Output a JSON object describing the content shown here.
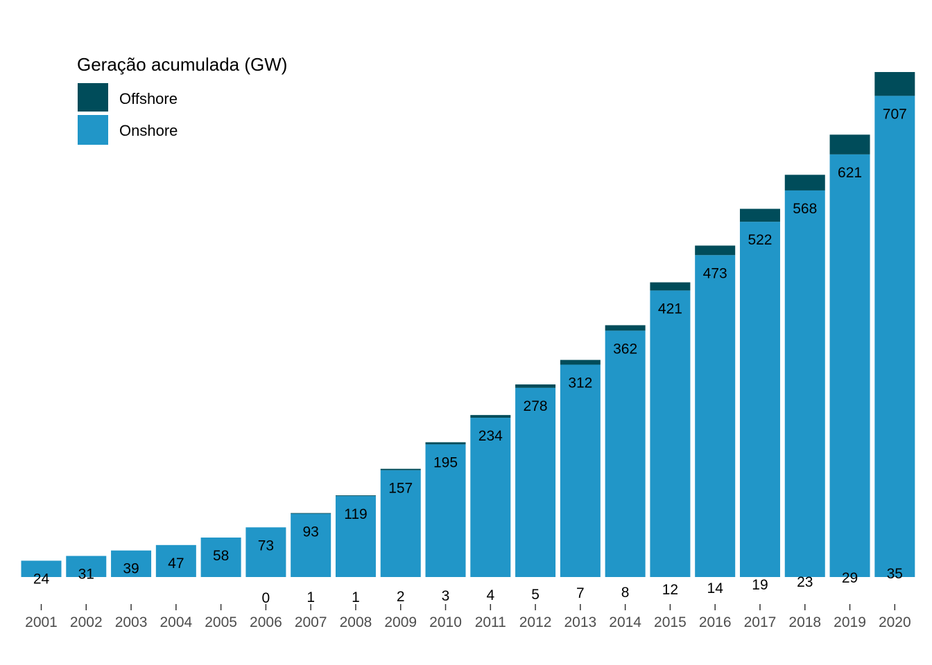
{
  "chart_data": {
    "type": "bar",
    "stacked": true,
    "categories": [
      "2001",
      "2002",
      "2003",
      "2004",
      "2005",
      "2006",
      "2007",
      "2008",
      "2009",
      "2010",
      "2011",
      "2012",
      "2013",
      "2014",
      "2015",
      "2016",
      "2017",
      "2018",
      "2019",
      "2020"
    ],
    "series": [
      {
        "name": "Onshore",
        "color": "#2196c8",
        "values": [
          24,
          31,
          39,
          47,
          58,
          73,
          93,
          119,
          157,
          195,
          234,
          278,
          312,
          362,
          421,
          473,
          522,
          568,
          621,
          707
        ]
      },
      {
        "name": "Offshore",
        "color": "#004c5a",
        "values": [
          null,
          null,
          null,
          null,
          null,
          0,
          1,
          1,
          2,
          3,
          4,
          5,
          7,
          8,
          12,
          14,
          19,
          23,
          29,
          35
        ]
      }
    ],
    "legend": {
      "title": "Geração acumulada (GW)",
      "position": "top-left",
      "order": [
        "Offshore",
        "Onshore"
      ]
    },
    "title": "",
    "xlabel": "",
    "ylabel": "",
    "ylim": [
      0,
      760
    ],
    "grid": false,
    "y_axis_visible": false
  }
}
